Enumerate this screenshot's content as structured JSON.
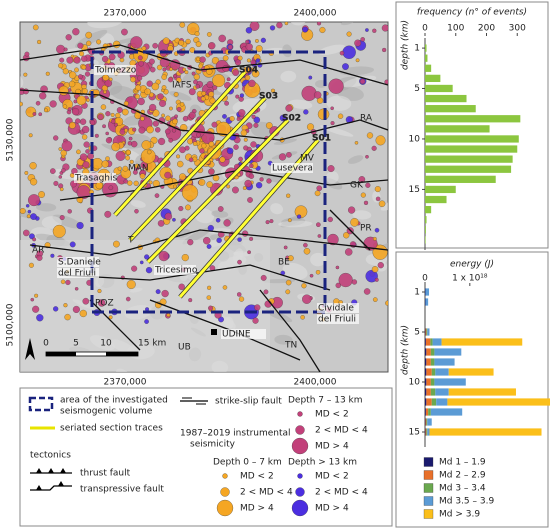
{
  "map": {
    "coords": {
      "top": [
        "2370,000",
        "2400,000"
      ],
      "bottom": [
        "2370,000",
        "2400,000"
      ],
      "left": [
        "5130,000",
        "5100,000"
      ]
    },
    "places": [
      "Tolmezzo",
      "Trasaghis",
      "Lusevera",
      "S.Daniele",
      "del Friuli",
      "Tricesimo",
      "Cividale",
      "del Friuli",
      "UDINE"
    ],
    "faults": [
      "IAFS",
      "RA",
      "MAN",
      "MV",
      "GK",
      "PR",
      "T",
      "AR",
      "BE",
      "POZ",
      "UB",
      "TN"
    ],
    "sections": [
      "S04",
      "S03",
      "S02",
      "S01"
    ],
    "scale": [
      "0",
      "5",
      "10",
      "15 km"
    ]
  },
  "legend": {
    "area": [
      "area of the investigated",
      "seismogenic volume"
    ],
    "sections": "seriated section traces",
    "tectonics": "tectonics",
    "thrust": "thrust fault",
    "transpressive": "transpressive fault",
    "strike_slip": "strike-slip fault",
    "seismicity": [
      "1987–2019 instrumental",
      "seismicity"
    ],
    "groups": [
      {
        "title": "Depth 0 – 7 km",
        "color": "#f5a623",
        "items": [
          "MD < 2",
          "2 < MD < 4",
          "MD > 4"
        ]
      },
      {
        "title": "Depth 7 – 13 km",
        "color": "#c2407a",
        "items": [
          "MD < 2",
          "2 < MD < 4",
          "MD > 4"
        ]
      },
      {
        "title": "Depth > 13 km",
        "color": "#4b2ee0",
        "items": [
          "MD < 2",
          "2 < MD < 4",
          "MD > 4"
        ]
      }
    ]
  },
  "chart_data": [
    {
      "type": "bar",
      "orientation": "horizontal",
      "title": "frequency (n° of events)",
      "ylabel": "depth (km)",
      "y": [
        1,
        2,
        3,
        4,
        5,
        6,
        7,
        8,
        9,
        10,
        11,
        12,
        13,
        14,
        15,
        16,
        17,
        18,
        19,
        20
      ],
      "values": [
        5,
        8,
        20,
        50,
        90,
        135,
        165,
        310,
        210,
        305,
        300,
        285,
        280,
        230,
        100,
        70,
        20,
        5,
        3,
        2
      ],
      "color": "#8cc63f",
      "xlim": [
        0,
        400
      ],
      "xticks": [
        0,
        100,
        200,
        300
      ],
      "ylim": [
        0,
        21
      ],
      "yticks": [
        1,
        5,
        10,
        15
      ]
    },
    {
      "type": "stacked_bar",
      "orientation": "horizontal",
      "title": "energy (J)",
      "ylabel": "depth (km)",
      "y": [
        1,
        2,
        3,
        4,
        5,
        6,
        7,
        8,
        9,
        10,
        11,
        12,
        13,
        14,
        15,
        16
      ],
      "series": [
        {
          "name": "Md 1 – 1.9",
          "color": "#1a1a6e",
          "values": [
            0.01,
            0.01,
            0,
            0,
            0.01,
            0.02,
            0.03,
            0.03,
            0.03,
            0.03,
            0.03,
            0.03,
            0.02,
            0.01,
            0.01,
            0
          ]
        },
        {
          "name": "Md 2 – 2.9",
          "color": "#e8702a",
          "values": [
            0,
            0,
            0,
            0,
            0.02,
            0.1,
            0.1,
            0.1,
            0.12,
            0.1,
            0.1,
            0.12,
            0.05,
            0.02,
            0.02,
            0
          ]
        },
        {
          "name": "Md 3 – 3.4",
          "color": "#6aa84f",
          "values": [
            0,
            0,
            0,
            0,
            0.02,
            0.05,
            0.08,
            0.08,
            0.08,
            0.08,
            0.1,
            0.1,
            0.06,
            0.02,
            0.02,
            0
          ]
        },
        {
          "name": "Md 3.5 – 3.9",
          "color": "#5b9bd5",
          "values": [
            0.08,
            0.06,
            0,
            0,
            0.05,
            0.2,
            0.6,
            0.45,
            0.3,
            0.7,
            0.3,
            0.25,
            0.7,
            0.1,
            0.05,
            0
          ]
        },
        {
          "name": "Md > 3.9",
          "color": "#fbbf1a",
          "values": [
            0,
            0,
            0,
            0,
            0,
            1.8,
            0,
            0,
            1.0,
            0,
            1.5,
            2.3,
            0,
            0,
            2.5,
            0
          ]
        }
      ],
      "xlim": [
        0,
        2.7
      ],
      "xticks": [
        0,
        {
          "value": 1,
          "label": "1 x 10¹⁸"
        }
      ],
      "ylim": [
        0,
        16.5
      ],
      "yticks": [
        1,
        5,
        10,
        15
      ]
    }
  ]
}
